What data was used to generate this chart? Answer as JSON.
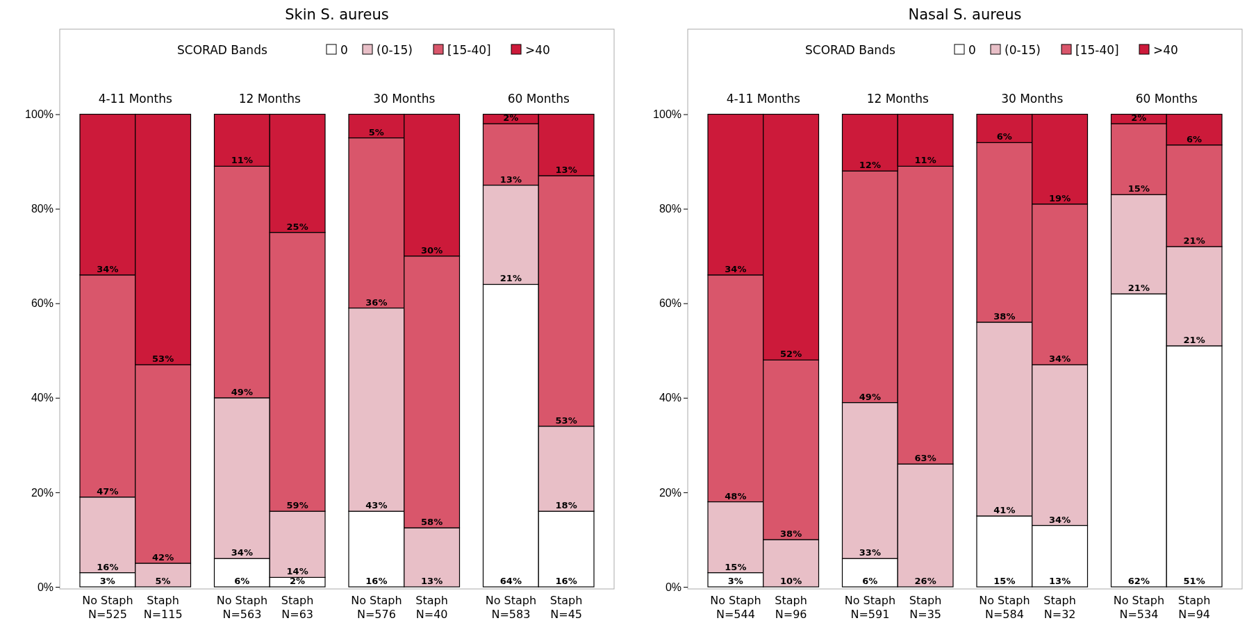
{
  "chart_data": [
    {
      "type": "bar",
      "title": "Skin S. aureus",
      "stacked": true,
      "legend": "top",
      "legend_title": "SCORAD Bands",
      "grid": false,
      "categories": [
        "No Staph\nN=525",
        "Staph\nN=115",
        "No Staph\nN=563",
        "Staph\nN=63",
        "No Staph\nN=576",
        "Staph\nN=40",
        "No Staph\nN=583",
        "Staph\nN=45"
      ],
      "annotations": [
        "4-11 Months",
        "12 Months",
        "30 Months",
        "60 Months"
      ],
      "ylim": [
        0,
        118
      ],
      "yticks": [
        {
          "value": 0,
          "label": "0%"
        },
        {
          "value": 20,
          "label": "20%"
        },
        {
          "value": 40,
          "label": "40%"
        },
        {
          "value": 60,
          "label": "60%"
        },
        {
          "value": 80,
          "label": "80%"
        },
        {
          "value": 100,
          "label": "100%"
        }
      ],
      "series": [
        {
          "name": "0",
          "color": "#ffffff",
          "values": [
            3,
            0,
            6,
            2,
            16,
            0,
            64,
            16
          ],
          "value_labels": [
            "3%",
            null,
            "6%",
            "2%",
            "16%",
            null,
            "64%",
            "16%"
          ]
        },
        {
          "name": "(0-15)",
          "color": "#e8bfc7",
          "values": [
            16,
            5,
            34,
            14,
            43,
            12.5,
            21,
            18
          ],
          "value_labels": [
            "16%",
            "5%",
            "34%",
            "14%",
            "43%",
            "13%",
            "21%",
            "18%"
          ]
        },
        {
          "name": "[15-40]",
          "color": "#d9566b",
          "values": [
            47,
            42,
            49,
            59,
            36,
            57.5,
            13,
            53
          ],
          "value_labels": [
            "47%",
            "42%",
            "49%",
            "59%",
            "36%",
            "58%",
            "13%",
            "53%"
          ]
        },
        {
          "name": ">40",
          "color": "#cc1a3a",
          "values": [
            34,
            53,
            11,
            25,
            5,
            30,
            2,
            13
          ],
          "value_labels": [
            "34%",
            "53%",
            "11%",
            "25%",
            "5%",
            "30%",
            "2%",
            "13%"
          ]
        }
      ]
    },
    {
      "type": "bar",
      "title": "Nasal S. aureus",
      "stacked": true,
      "legend": "top",
      "legend_title": "SCORAD Bands",
      "grid": false,
      "categories": [
        "No Staph\nN=544",
        "Staph\nN=96",
        "No Staph\nN=591",
        "Staph\nN=35",
        "No Staph\nN=584",
        "Staph\nN=32",
        "No Staph\nN=534",
        "Staph\nN=94"
      ],
      "annotations": [
        "4-11 Months",
        "12 Months",
        "30 Months",
        "60 Months"
      ],
      "ylim": [
        0,
        118
      ],
      "yticks": [
        {
          "value": 0,
          "label": "0%"
        },
        {
          "value": 20,
          "label": "20%"
        },
        {
          "value": 40,
          "label": "40%"
        },
        {
          "value": 60,
          "label": "60%"
        },
        {
          "value": 80,
          "label": "80%"
        },
        {
          "value": 100,
          "label": "100%"
        }
      ],
      "series": [
        {
          "name": "0",
          "color": "#ffffff",
          "values": [
            3,
            0,
            6,
            0,
            15,
            13,
            62,
            51
          ],
          "value_labels": [
            "3%",
            null,
            "6%",
            null,
            "15%",
            "13%",
            "62%",
            "51%"
          ]
        },
        {
          "name": "(0-15)",
          "color": "#e8bfc7",
          "values": [
            15,
            10,
            33,
            26,
            41,
            34,
            21,
            21
          ],
          "value_labels": [
            "15%",
            "10%",
            "33%",
            "26%",
            "41%",
            "34%",
            "21%",
            "21%"
          ]
        },
        {
          "name": "[15-40]",
          "color": "#d9566b",
          "values": [
            48,
            38,
            49,
            63,
            38,
            34,
            15,
            21.5
          ],
          "value_labels": [
            "48%",
            "38%",
            "49%",
            "63%",
            "38%",
            "34%",
            "15%",
            "21%"
          ]
        },
        {
          "name": ">40",
          "color": "#cc1a3a",
          "values": [
            34,
            52,
            12,
            11,
            6,
            19,
            2,
            6.5
          ],
          "value_labels": [
            "34%",
            "52%",
            "12%",
            "11%",
            "6%",
            "19%",
            "2%",
            "6%"
          ]
        }
      ]
    }
  ]
}
